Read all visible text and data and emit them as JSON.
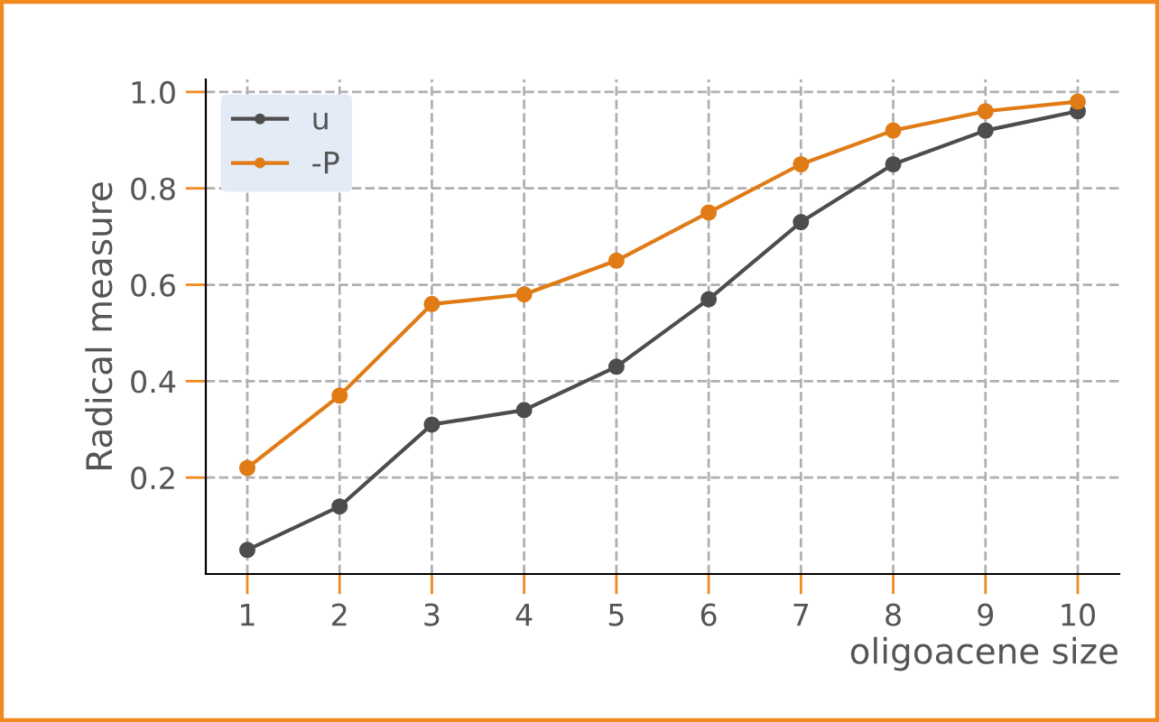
{
  "chart_data": {
    "type": "line",
    "xlabel": "oligoacene size",
    "ylabel": "Radical measure",
    "x": [
      1,
      2,
      3,
      4,
      5,
      6,
      7,
      8,
      9,
      10
    ],
    "series": [
      {
        "name": "u",
        "color": "#4d4d4d",
        "values": [
          0.05,
          0.14,
          0.31,
          0.34,
          0.43,
          0.57,
          0.73,
          0.85,
          0.92,
          0.96
        ]
      },
      {
        "name": "-P",
        "color": "#e07b16",
        "values": [
          0.22,
          0.37,
          0.56,
          0.58,
          0.65,
          0.75,
          0.85,
          0.92,
          0.96,
          0.98
        ]
      }
    ],
    "xlim": [
      0.55,
      10.45
    ],
    "ylim": [
      0.0,
      1.026
    ],
    "xticks": [
      1,
      2,
      3,
      4,
      5,
      6,
      7,
      8,
      9,
      10
    ],
    "yticks": [
      0.2,
      0.4,
      0.6,
      0.8,
      {
        "value": 1.0,
        "label": "1.0"
      }
    ],
    "grid": true,
    "legend": "top left",
    "marker": "circle",
    "line_style": "solid"
  }
}
